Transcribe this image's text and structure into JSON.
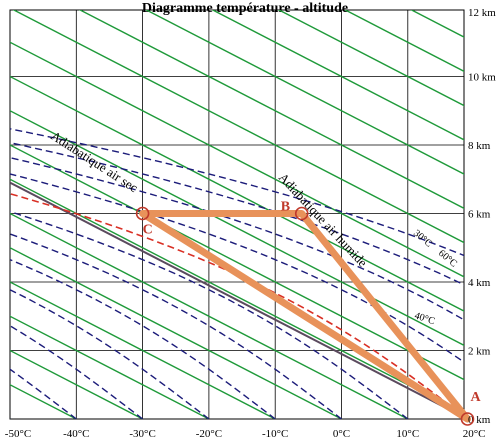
{
  "title": "Diagramme température - altitude",
  "x_axis": {
    "ticks": [
      {
        "value": -50,
        "label": "-50°C"
      },
      {
        "value": -40,
        "label": "-40°C"
      },
      {
        "value": -30,
        "label": "-30°C"
      },
      {
        "value": -20,
        "label": "-20°C"
      },
      {
        "value": -10,
        "label": "-10°C"
      },
      {
        "value": 0,
        "label": "0°C"
      },
      {
        "value": 10,
        "label": "10°C"
      },
      {
        "value": 20,
        "label": "20°C"
      }
    ],
    "range": [
      -50,
      20
    ]
  },
  "y_axis": {
    "ticks": [
      {
        "value": 0,
        "label": "0 km"
      },
      {
        "value": 2,
        "label": "2 km"
      },
      {
        "value": 4,
        "label": "4 km"
      },
      {
        "value": 6,
        "label": "6 km"
      },
      {
        "value": 8,
        "label": "8 km"
      },
      {
        "value": 10,
        "label": "10 km"
      },
      {
        "value": 12,
        "label": "12 km"
      }
    ],
    "range": [
      0,
      12
    ]
  },
  "annotations": {
    "dry_adiabat": "Adiabatique air sec",
    "moist_adiabat": "Adiabatique air humide",
    "label_30": "30°C",
    "label_60": "60°C",
    "label_40": "40°C"
  },
  "points": [
    {
      "id": "A",
      "label": "A",
      "t": 19,
      "z": 0
    },
    {
      "id": "B",
      "label": "B",
      "t": -6,
      "z": 6
    },
    {
      "id": "C",
      "label": "C",
      "t": -30,
      "z": 6
    }
  ],
  "colors": {
    "grid": "#000000",
    "dry_adiabat": "#1f9a3a",
    "highlight_dry": "#5b4a5e",
    "moist_adiabat": "#1c1c7a",
    "moist_highlight": "#d93025",
    "path": "#e8925a",
    "point": "#c0392b"
  }
}
